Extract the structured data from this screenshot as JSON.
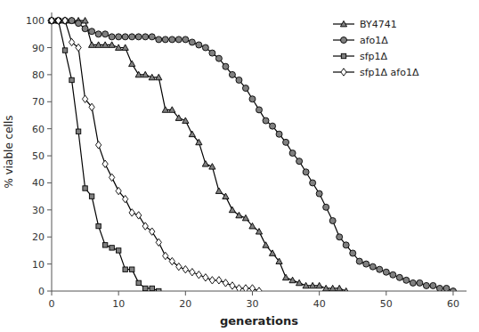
{
  "chart_data": {
    "type": "line",
    "xlabel": "generations",
    "ylabel": "% viable cells",
    "xlim": [
      0,
      62
    ],
    "ylim": [
      0,
      103
    ],
    "xticks": [
      0,
      10,
      20,
      30,
      40,
      50,
      60
    ],
    "yticks": [
      0,
      10,
      20,
      30,
      40,
      50,
      60,
      70,
      80,
      90,
      100
    ],
    "grid": false,
    "legend": "upper right",
    "series": [
      {
        "name": "BY4741",
        "color": "#808080",
        "marker": "triangle",
        "x": [
          0,
          1,
          2,
          3,
          4,
          5,
          6,
          7,
          8,
          9,
          10,
          11,
          12,
          13,
          14,
          15,
          16,
          17,
          18,
          19,
          20,
          21,
          22,
          23,
          24,
          25,
          26,
          27,
          28,
          29,
          30,
          31,
          32,
          33,
          34,
          35,
          36,
          37,
          38,
          39,
          40,
          41,
          42,
          43,
          44
        ],
        "values": [
          100,
          100,
          100,
          100,
          100,
          100,
          91,
          91,
          91,
          91,
          90,
          90,
          84,
          80,
          80,
          79,
          79,
          67,
          67,
          64,
          63,
          58,
          55,
          47,
          46,
          37,
          35,
          30,
          28,
          27,
          24,
          22,
          17,
          14,
          11,
          5,
          4,
          3,
          2,
          2,
          2,
          1,
          1,
          1,
          0
        ]
      },
      {
        "name": "afo1Δ",
        "color": "#808080",
        "marker": "circle",
        "x": [
          0,
          1,
          2,
          3,
          4,
          5,
          6,
          7,
          8,
          9,
          10,
          11,
          12,
          13,
          14,
          15,
          16,
          17,
          18,
          19,
          20,
          21,
          22,
          23,
          24,
          25,
          26,
          27,
          28,
          29,
          30,
          31,
          32,
          33,
          34,
          35,
          36,
          37,
          38,
          39,
          40,
          41,
          42,
          43,
          44,
          45,
          46,
          47,
          48,
          49,
          50,
          51,
          52,
          53,
          54,
          55,
          56,
          57,
          58,
          59,
          60
        ],
        "values": [
          100,
          100,
          100,
          100,
          99,
          97,
          96,
          95,
          95,
          94,
          94,
          94,
          94,
          94,
          94,
          94,
          93,
          93,
          93,
          93,
          93,
          92,
          91,
          90,
          88,
          86,
          83,
          80,
          78,
          75,
          71,
          67,
          63,
          61,
          58,
          55,
          51,
          48,
          44,
          40,
          36,
          31,
          26,
          20,
          17,
          14,
          11,
          10,
          9,
          8,
          7,
          6,
          5,
          4,
          3,
          3,
          2,
          2,
          1,
          1,
          0
        ]
      },
      {
        "name": "sfp1Δ",
        "color": "#808080",
        "marker": "square",
        "x": [
          0,
          1,
          2,
          3,
          4,
          5,
          6,
          7,
          8,
          9,
          10,
          11,
          12,
          13,
          14,
          15,
          16
        ],
        "values": [
          100,
          100,
          89,
          78,
          59,
          38,
          35,
          24,
          17,
          16,
          15,
          8,
          8,
          3,
          1,
          1,
          0
        ]
      },
      {
        "name": "sfp1Δ afo1Δ",
        "color": "#ffffff",
        "marker": "diamond",
        "x": [
          0,
          1,
          2,
          3,
          4,
          5,
          6,
          7,
          8,
          9,
          10,
          11,
          12,
          13,
          14,
          15,
          16,
          17,
          18,
          19,
          20,
          21,
          22,
          23,
          24,
          25,
          26,
          27,
          28,
          29,
          30,
          31
        ],
        "values": [
          100,
          100,
          100,
          92,
          90,
          71,
          68,
          54,
          47,
          42,
          37,
          34,
          29,
          28,
          24,
          22,
          18,
          13,
          11,
          9,
          8,
          7,
          6,
          5,
          4,
          4,
          3,
          2,
          1,
          1,
          1,
          0
        ]
      }
    ]
  }
}
